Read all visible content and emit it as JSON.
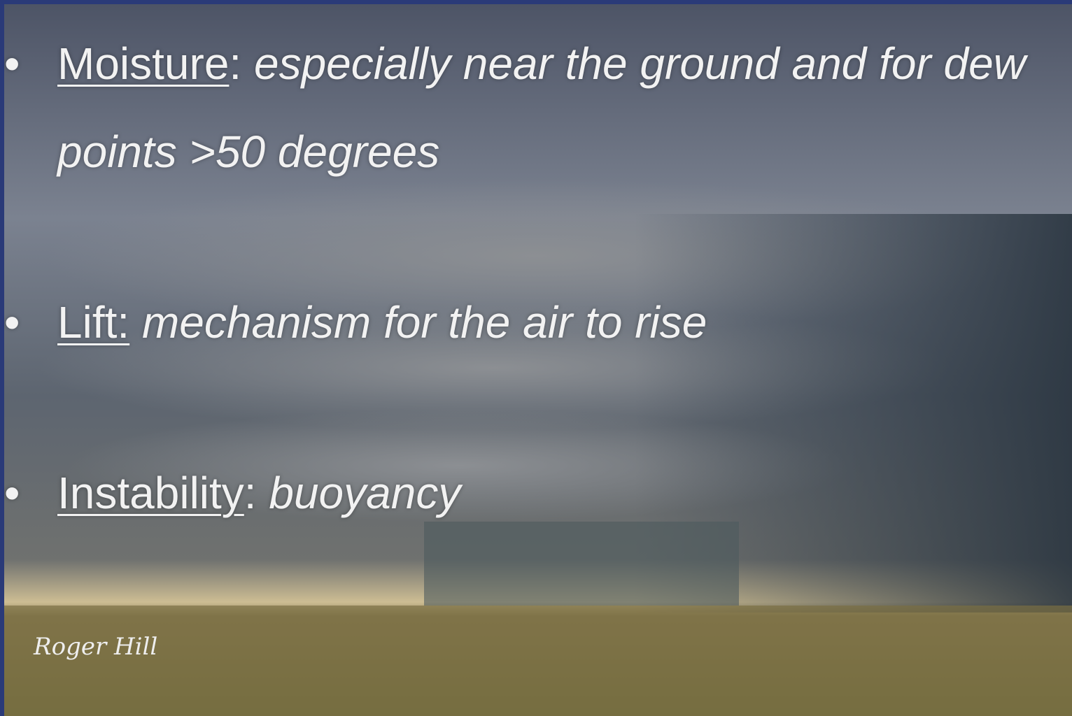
{
  "bullets": [
    {
      "term": "Moisture",
      "separator": ":",
      "description": "especially near the ground and for dew points >50 degrees"
    },
    {
      "term": "Lift:",
      "description": "mechanism for the air to rise"
    },
    {
      "term": "Instability",
      "separator": ":",
      "description": "buoyancy"
    }
  ],
  "credit": "Roger Hill"
}
